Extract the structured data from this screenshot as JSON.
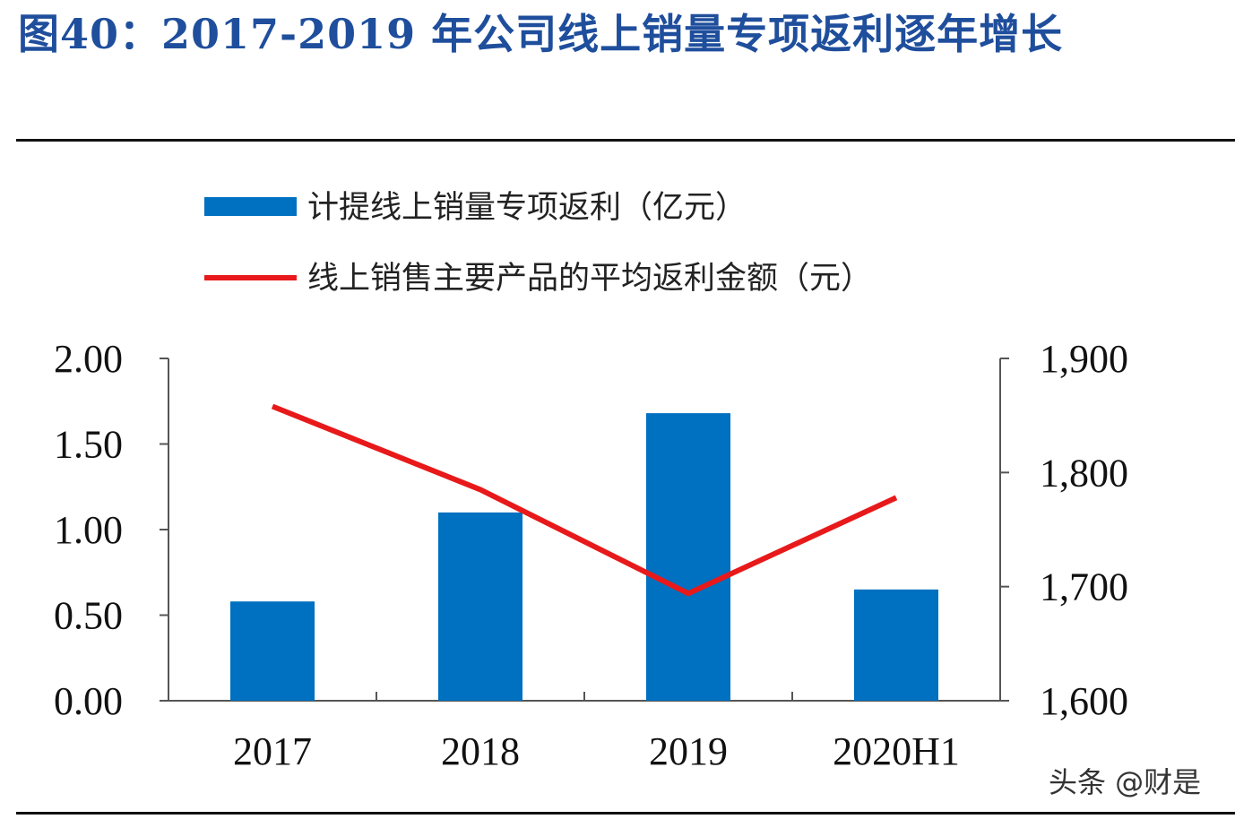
{
  "title": "图40：2017-2019 年公司线上销量专项返利逐年增长",
  "watermark": "头条 @财是",
  "colors": {
    "bar": "#0070c0",
    "line": "#e8191a",
    "title": "#1f4e9c"
  },
  "chart_data": {
    "type": "bar",
    "categories": [
      "2017",
      "2018",
      "2019",
      "2020H1"
    ],
    "series": [
      {
        "name": "计提线上销量专项返利（亿元）",
        "type": "bar",
        "axis": "left",
        "values": [
          0.58,
          1.1,
          1.68,
          0.65
        ]
      },
      {
        "name": "线上销售主要产品的平均返利金额（元）",
        "type": "line",
        "axis": "right",
        "values": [
          1858,
          1785,
          1694,
          1778
        ]
      }
    ],
    "y_left": {
      "ticks": [
        "2.00",
        "1.50",
        "1.00",
        "0.50",
        "0.00"
      ],
      "min": 0,
      "max": 2
    },
    "y_right": {
      "ticks": [
        "1,900",
        "1,800",
        "1,700",
        "1,600"
      ],
      "min": 1600,
      "max": 1900
    },
    "legend_position": "top-left",
    "grid": false
  }
}
